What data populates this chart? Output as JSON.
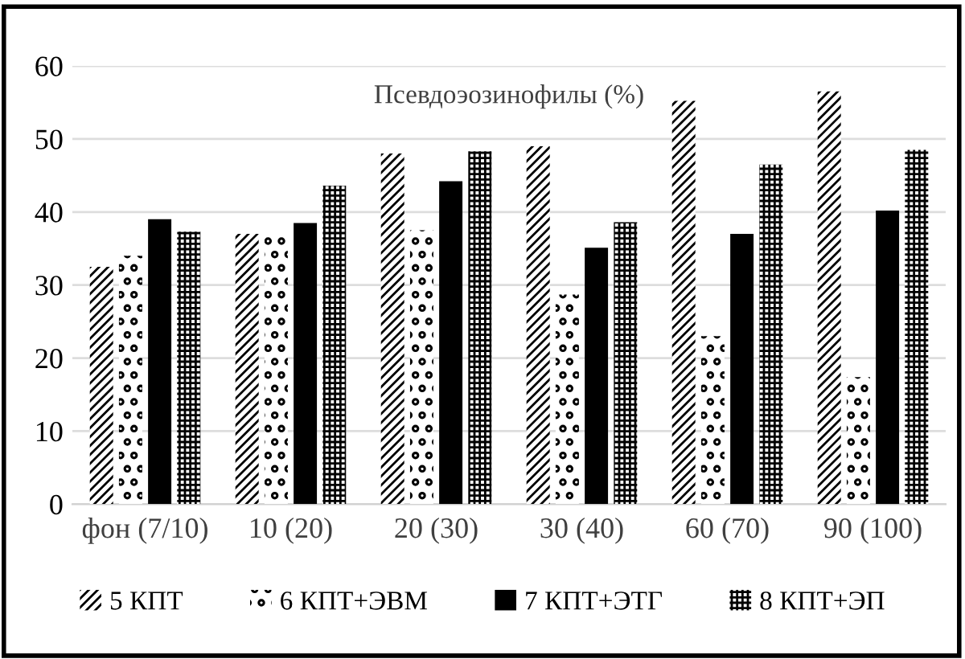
{
  "chart_data": {
    "type": "bar",
    "title": "Псевдоэозинофилы (%)",
    "categories": [
      "фон (7/10)",
      "10 (20)",
      "20 (30)",
      "30 (40)",
      "60 (70)",
      "90 (100)"
    ],
    "series": [
      {
        "name": "5 КПТ",
        "color": "#000000",
        "values": [
          32.5,
          37,
          48,
          49,
          55.2,
          56.5
        ]
      },
      {
        "name": "6 КПТ+ЭВМ",
        "color": "#000000",
        "values": [
          34,
          36.8,
          37.5,
          28.7,
          23,
          17.4
        ]
      },
      {
        "name": "7 КПТ+ЭТГ",
        "color": "#000000",
        "values": [
          39,
          38.5,
          44.2,
          35.1,
          37,
          40.2
        ]
      },
      {
        "name": "8 КПТ+ЭП",
        "color": "#000000",
        "values": [
          37.3,
          43.6,
          48.3,
          38.6,
          46.5,
          48.5
        ]
      }
    ],
    "ylim": [
      0,
      60
    ],
    "yticks": [
      0,
      10,
      20,
      30,
      40,
      50,
      60
    ],
    "grid": "y",
    "legend": "bottom"
  }
}
